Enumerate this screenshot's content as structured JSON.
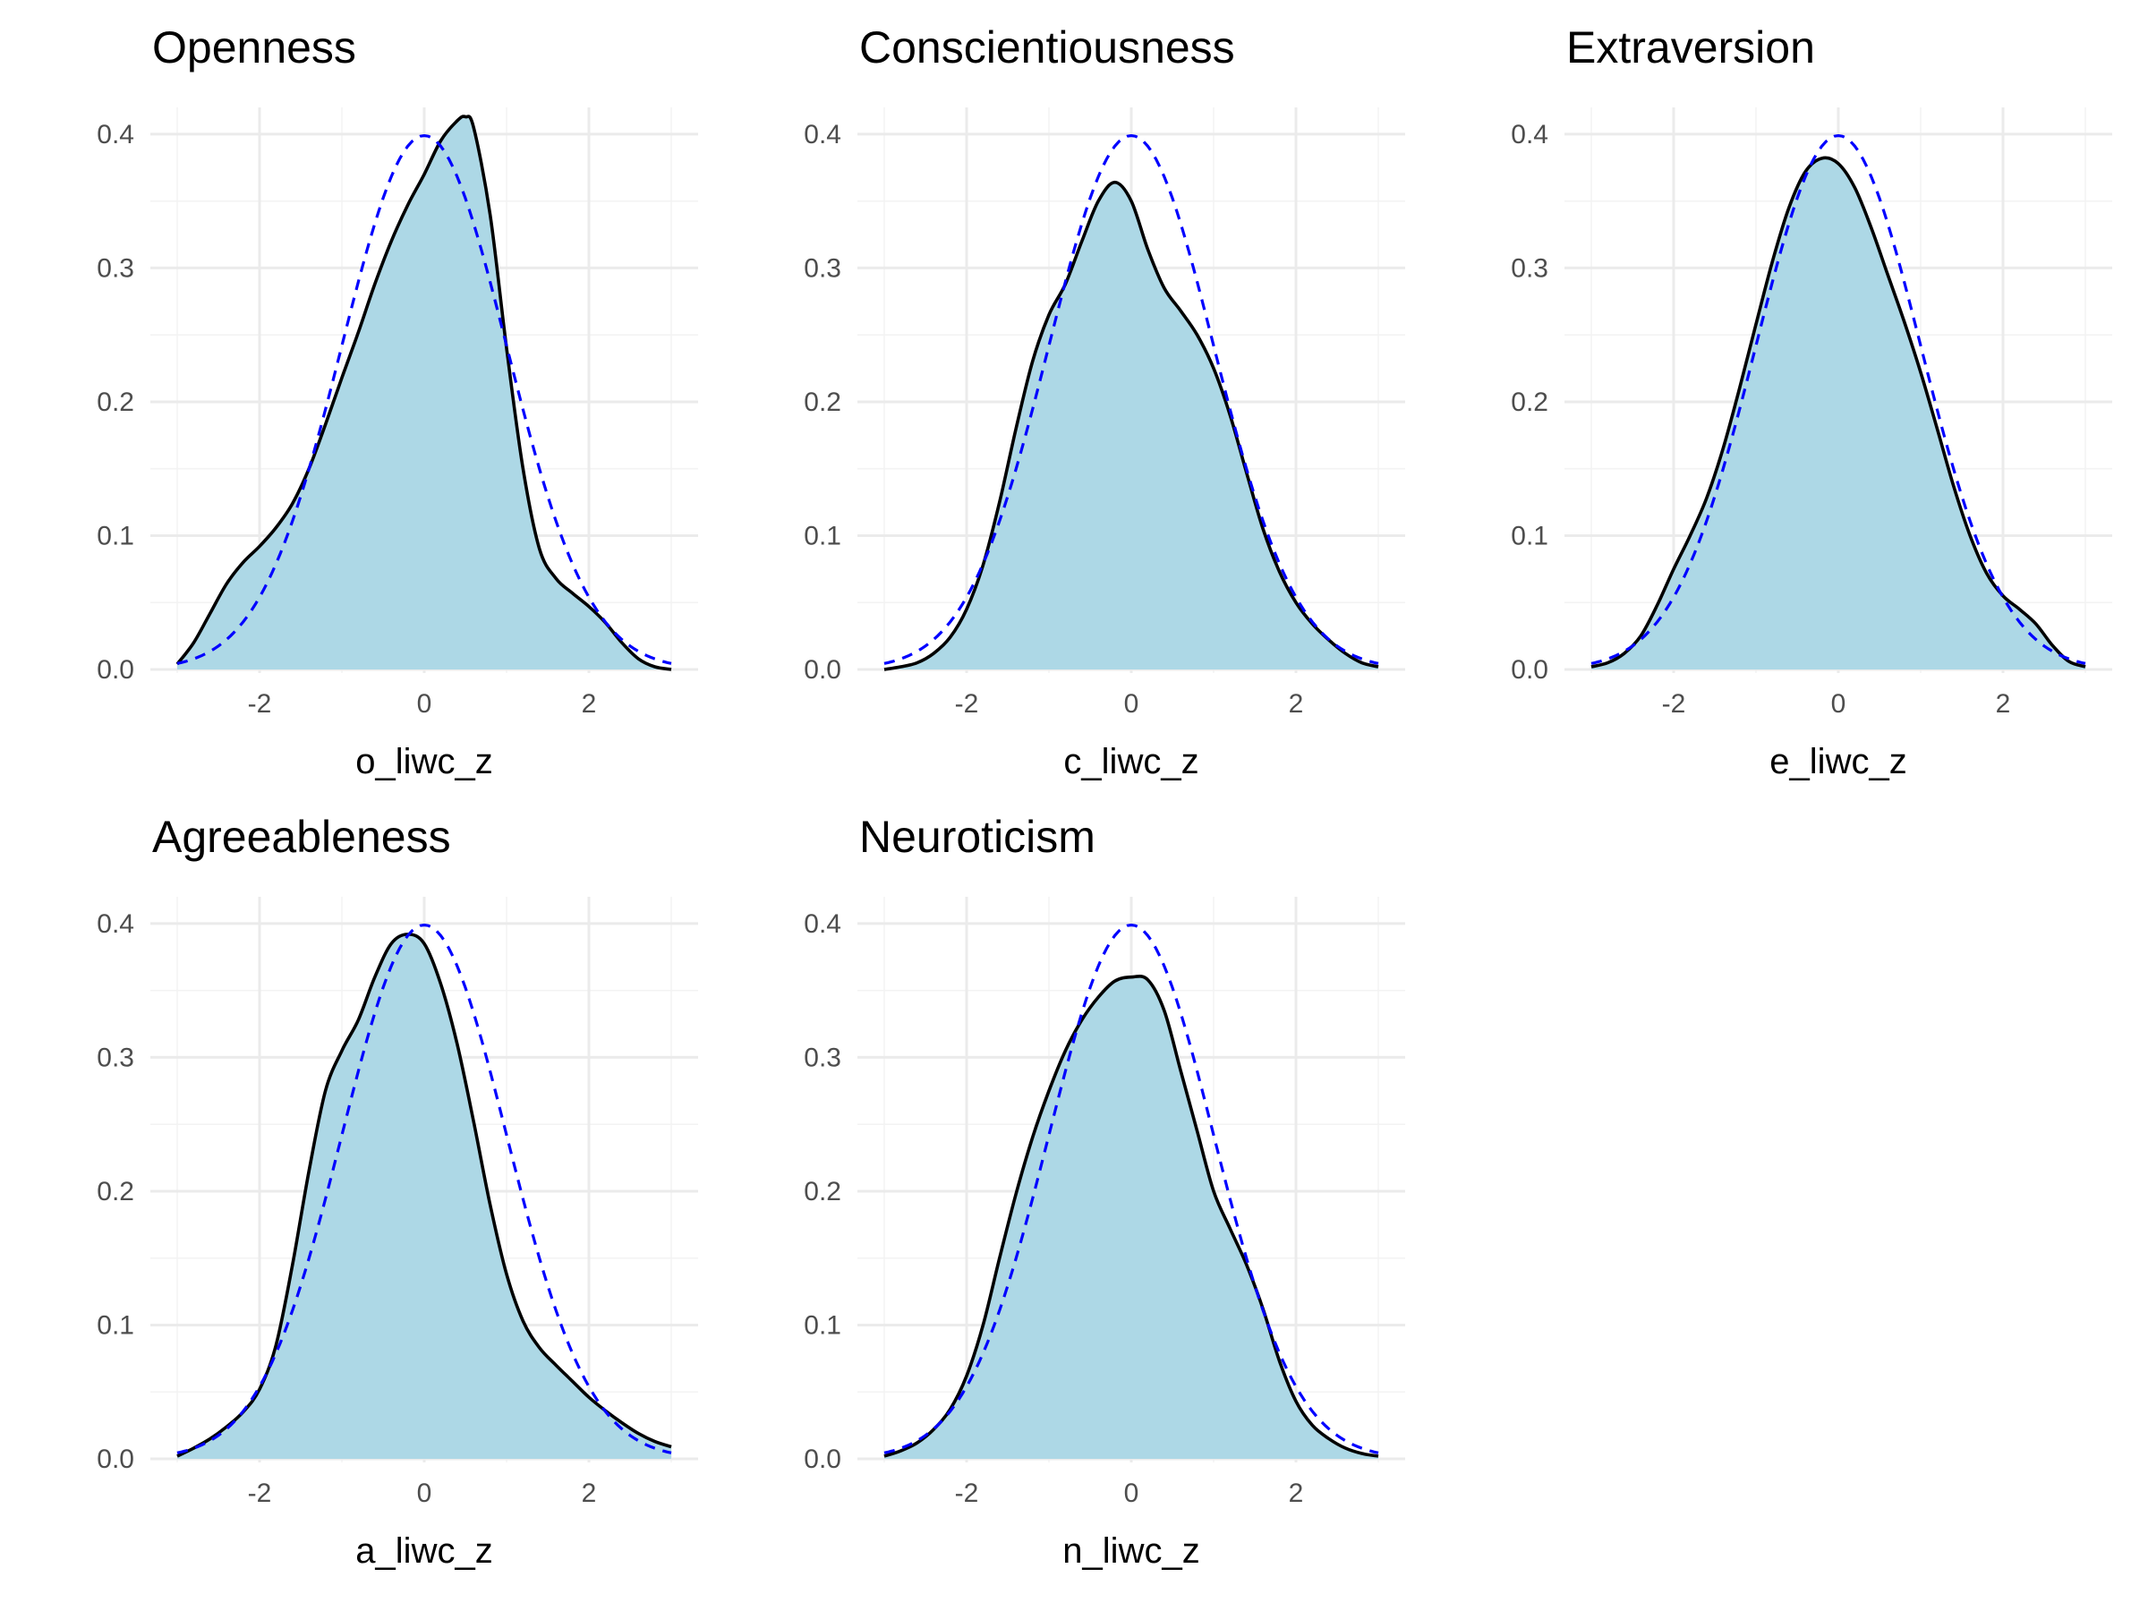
{
  "chart_data": [
    {
      "type": "area",
      "title": "Openness",
      "xlabel": "o_liwc_z",
      "ylabel": "",
      "xlim": [
        -3,
        3
      ],
      "ylim": [
        0,
        0.42
      ],
      "x_ticks": [
        -2,
        0,
        2
      ],
      "y_ticks": [
        0.0,
        0.1,
        0.2,
        0.3,
        0.4
      ],
      "x_tick_labels": [
        "-2",
        "0",
        "2"
      ],
      "y_tick_labels": [
        "0.0",
        "0.1",
        "0.2",
        "0.3",
        "0.4"
      ],
      "grid": true,
      "density": {
        "x": [
          -3.0,
          -2.8,
          -2.6,
          -2.4,
          -2.2,
          -2.0,
          -1.8,
          -1.6,
          -1.4,
          -1.2,
          -1.0,
          -0.8,
          -0.6,
          -0.4,
          -0.2,
          0.0,
          0.2,
          0.4,
          0.5,
          0.6,
          0.8,
          1.0,
          1.2,
          1.4,
          1.6,
          1.8,
          2.0,
          2.2,
          2.4,
          2.6,
          2.8,
          3.0
        ],
        "y": [
          0.004,
          0.02,
          0.042,
          0.064,
          0.08,
          0.092,
          0.106,
          0.124,
          0.15,
          0.183,
          0.218,
          0.252,
          0.288,
          0.32,
          0.347,
          0.37,
          0.395,
          0.41,
          0.413,
          0.405,
          0.34,
          0.24,
          0.15,
          0.09,
          0.068,
          0.057,
          0.047,
          0.035,
          0.02,
          0.008,
          0.002,
          0.0
        ]
      },
      "normal_reference": {
        "mean": 0,
        "sd": 1
      }
    },
    {
      "type": "area",
      "title": "Conscientiousness",
      "xlabel": "c_liwc_z",
      "ylabel": "",
      "xlim": [
        -3,
        3
      ],
      "ylim": [
        0,
        0.42
      ],
      "x_ticks": [
        -2,
        0,
        2
      ],
      "y_ticks": [
        0.0,
        0.1,
        0.2,
        0.3,
        0.4
      ],
      "x_tick_labels": [
        "-2",
        "0",
        "2"
      ],
      "y_tick_labels": [
        "0.0",
        "0.1",
        "0.2",
        "0.3",
        "0.4"
      ],
      "grid": true,
      "density": {
        "x": [
          -3.0,
          -2.8,
          -2.6,
          -2.4,
          -2.2,
          -2.0,
          -1.8,
          -1.6,
          -1.4,
          -1.2,
          -1.0,
          -0.8,
          -0.6,
          -0.4,
          -0.2,
          0.0,
          0.2,
          0.4,
          0.6,
          0.8,
          1.0,
          1.2,
          1.4,
          1.6,
          1.8,
          2.0,
          2.2,
          2.4,
          2.6,
          2.8,
          3.0
        ],
        "y": [
          0.0,
          0.002,
          0.005,
          0.012,
          0.024,
          0.045,
          0.078,
          0.125,
          0.18,
          0.23,
          0.265,
          0.288,
          0.32,
          0.35,
          0.364,
          0.35,
          0.314,
          0.285,
          0.268,
          0.25,
          0.225,
          0.19,
          0.147,
          0.105,
          0.073,
          0.05,
          0.034,
          0.022,
          0.012,
          0.005,
          0.002
        ]
      },
      "normal_reference": {
        "mean": 0,
        "sd": 1
      }
    },
    {
      "type": "area",
      "title": "Extraversion",
      "xlabel": "e_liwc_z",
      "ylabel": "",
      "xlim": [
        -3,
        3
      ],
      "ylim": [
        0,
        0.42
      ],
      "x_ticks": [
        -2,
        0,
        2
      ],
      "y_ticks": [
        0.0,
        0.1,
        0.2,
        0.3,
        0.4
      ],
      "x_tick_labels": [
        "-2",
        "0",
        "2"
      ],
      "y_tick_labels": [
        "0.0",
        "0.1",
        "0.2",
        "0.3",
        "0.4"
      ],
      "grid": true,
      "density": {
        "x": [
          -3.0,
          -2.8,
          -2.6,
          -2.4,
          -2.2,
          -2.0,
          -1.8,
          -1.6,
          -1.4,
          -1.2,
          -1.0,
          -0.8,
          -0.6,
          -0.4,
          -0.2,
          0.0,
          0.2,
          0.4,
          0.6,
          0.8,
          1.0,
          1.2,
          1.4,
          1.6,
          1.8,
          2.0,
          2.2,
          2.4,
          2.6,
          2.8,
          3.0
        ],
        "y": [
          0.002,
          0.005,
          0.012,
          0.025,
          0.048,
          0.075,
          0.1,
          0.128,
          0.165,
          0.21,
          0.258,
          0.305,
          0.345,
          0.372,
          0.382,
          0.378,
          0.36,
          0.33,
          0.295,
          0.26,
          0.222,
          0.18,
          0.137,
          0.1,
          0.072,
          0.055,
          0.045,
          0.034,
          0.018,
          0.006,
          0.002
        ]
      },
      "normal_reference": {
        "mean": 0,
        "sd": 1
      }
    },
    {
      "type": "area",
      "title": "Agreeableness",
      "xlabel": "a_liwc_z",
      "ylabel": "",
      "xlim": [
        -3,
        3
      ],
      "ylim": [
        0,
        0.42
      ],
      "x_ticks": [
        -2,
        0,
        2
      ],
      "y_ticks": [
        0.0,
        0.1,
        0.2,
        0.3,
        0.4
      ],
      "x_tick_labels": [
        "-2",
        "0",
        "2"
      ],
      "y_tick_labels": [
        "0.0",
        "0.1",
        "0.2",
        "0.3",
        "0.4"
      ],
      "grid": true,
      "density": {
        "x": [
          -3.0,
          -2.8,
          -2.6,
          -2.4,
          -2.2,
          -2.0,
          -1.8,
          -1.6,
          -1.4,
          -1.2,
          -1.0,
          -0.8,
          -0.6,
          -0.4,
          -0.2,
          0.0,
          0.2,
          0.4,
          0.6,
          0.8,
          1.0,
          1.2,
          1.4,
          1.6,
          1.8,
          2.0,
          2.2,
          2.4,
          2.6,
          2.8,
          3.0
        ],
        "y": [
          0.002,
          0.008,
          0.015,
          0.024,
          0.035,
          0.052,
          0.085,
          0.145,
          0.215,
          0.275,
          0.305,
          0.328,
          0.36,
          0.385,
          0.392,
          0.385,
          0.355,
          0.31,
          0.252,
          0.19,
          0.138,
          0.103,
          0.083,
          0.07,
          0.058,
          0.046,
          0.036,
          0.027,
          0.019,
          0.013,
          0.009
        ]
      },
      "normal_reference": {
        "mean": 0,
        "sd": 1
      }
    },
    {
      "type": "area",
      "title": "Neuroticism",
      "xlabel": "n_liwc_z",
      "ylabel": "",
      "xlim": [
        -3,
        3
      ],
      "ylim": [
        0,
        0.42
      ],
      "x_ticks": [
        -2,
        0,
        2
      ],
      "y_ticks": [
        0.0,
        0.1,
        0.2,
        0.3,
        0.4
      ],
      "x_tick_labels": [
        "-2",
        "0",
        "2"
      ],
      "y_tick_labels": [
        "0.0",
        "0.1",
        "0.2",
        "0.3",
        "0.4"
      ],
      "grid": true,
      "density": {
        "x": [
          -3.0,
          -2.8,
          -2.6,
          -2.4,
          -2.2,
          -2.0,
          -1.8,
          -1.6,
          -1.4,
          -1.2,
          -1.0,
          -0.8,
          -0.6,
          -0.4,
          -0.2,
          0.0,
          0.2,
          0.4,
          0.6,
          0.8,
          1.0,
          1.2,
          1.4,
          1.6,
          1.8,
          2.0,
          2.2,
          2.4,
          2.6,
          2.8,
          3.0
        ],
        "y": [
          0.002,
          0.006,
          0.012,
          0.022,
          0.037,
          0.062,
          0.1,
          0.15,
          0.198,
          0.24,
          0.275,
          0.305,
          0.328,
          0.345,
          0.357,
          0.36,
          0.358,
          0.335,
          0.29,
          0.245,
          0.2,
          0.172,
          0.145,
          0.112,
          0.073,
          0.043,
          0.025,
          0.015,
          0.008,
          0.004,
          0.002
        ]
      },
      "normal_reference": {
        "mean": 0,
        "sd": 1
      }
    }
  ],
  "colors": {
    "density_fill": "#add8e6",
    "density_line": "#000000",
    "normal_line": "#0000ff"
  }
}
